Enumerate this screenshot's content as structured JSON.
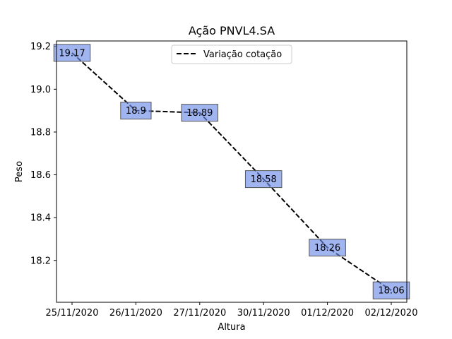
{
  "chart_data": {
    "type": "line",
    "title": "Ação PNVL4.SA",
    "xlabel": "Altura",
    "ylabel": "Peso",
    "categories": [
      "25/11/2020",
      "26/11/2020",
      "27/11/2020",
      "30/11/2020",
      "01/12/2020",
      "02/12/2020"
    ],
    "series": [
      {
        "name": "Variação cotação",
        "values": [
          19.17,
          18.9,
          18.89,
          18.58,
          18.26,
          18.06
        ],
        "color": "#000000",
        "linestyle": "dashed"
      }
    ],
    "data_labels": [
      "19.17",
      "18.9",
      "18.89",
      "18.58",
      "18.26",
      "18.06"
    ],
    "data_label_box_color": "#6d8ce8",
    "ylim": [
      18.0045,
      19.2255
    ],
    "yticks": [
      18.2,
      18.4,
      18.6,
      18.8,
      19.0,
      19.2
    ],
    "ytick_labels": [
      "18.2",
      "18.4",
      "18.6",
      "18.8",
      "19.0",
      "19.2"
    ],
    "legend": "upper-center",
    "grid": false
  }
}
